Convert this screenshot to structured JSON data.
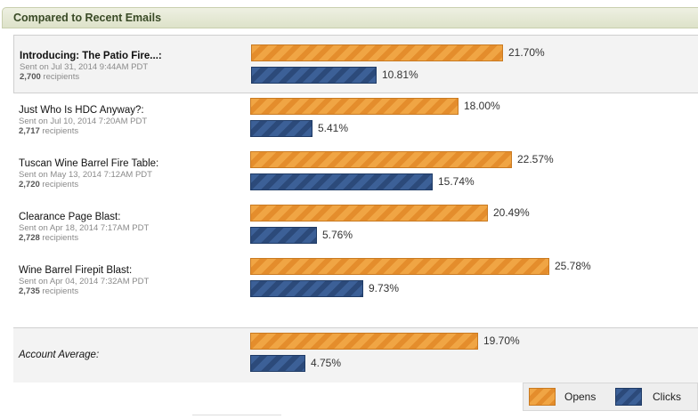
{
  "panel": {
    "title": "Compared to Recent Emails"
  },
  "emails": [
    {
      "title": "Introducing: The Patio Fire...:",
      "sent": "Sent on Jul 31, 2014 9:44AM PDT",
      "recipients_count": "2,700",
      "recipients_label": "recipients",
      "opens_pct": 21.7,
      "opens_label": "21.70%",
      "clicks_pct": 10.81,
      "clicks_label": "10.81%"
    },
    {
      "title": "Just Who Is HDC Anyway?:",
      "sent": "Sent on Jul 10, 2014 7:20AM PDT",
      "recipients_count": "2,717",
      "recipients_label": "recipients",
      "opens_pct": 18.0,
      "opens_label": "18.00%",
      "clicks_pct": 5.41,
      "clicks_label": "5.41%"
    },
    {
      "title": "Tuscan Wine Barrel Fire Table:",
      "sent": "Sent on May 13, 2014 7:12AM PDT",
      "recipients_count": "2,720",
      "recipients_label": "recipients",
      "opens_pct": 22.57,
      "opens_label": "22.57%",
      "clicks_pct": 15.74,
      "clicks_label": "15.74%"
    },
    {
      "title": "Clearance Page Blast:",
      "sent": "Sent on Apr 18, 2014 7:17AM PDT",
      "recipients_count": "2,728",
      "recipients_label": "recipients",
      "opens_pct": 20.49,
      "opens_label": "20.49%",
      "clicks_pct": 5.76,
      "clicks_label": "5.76%"
    },
    {
      "title": "Wine Barrel Firepit Blast:",
      "sent": "Sent on Apr 04, 2014 7:32AM PDT",
      "recipients_count": "2,735",
      "recipients_label": "recipients",
      "opens_pct": 25.78,
      "opens_label": "25.78%",
      "clicks_pct": 9.73,
      "clicks_label": "9.73%"
    }
  ],
  "average": {
    "title": "Account Average:",
    "opens_pct": 19.7,
    "opens_label": "19.70%",
    "clicks_pct": 4.75,
    "clicks_label": "4.75%"
  },
  "legend": {
    "opens": "Opens",
    "clicks": "Clicks"
  },
  "colors": {
    "opens": "#f0a544",
    "clicks": "#3c6097",
    "header_bg": "#e3e7d2",
    "header_text": "#394a26"
  }
}
